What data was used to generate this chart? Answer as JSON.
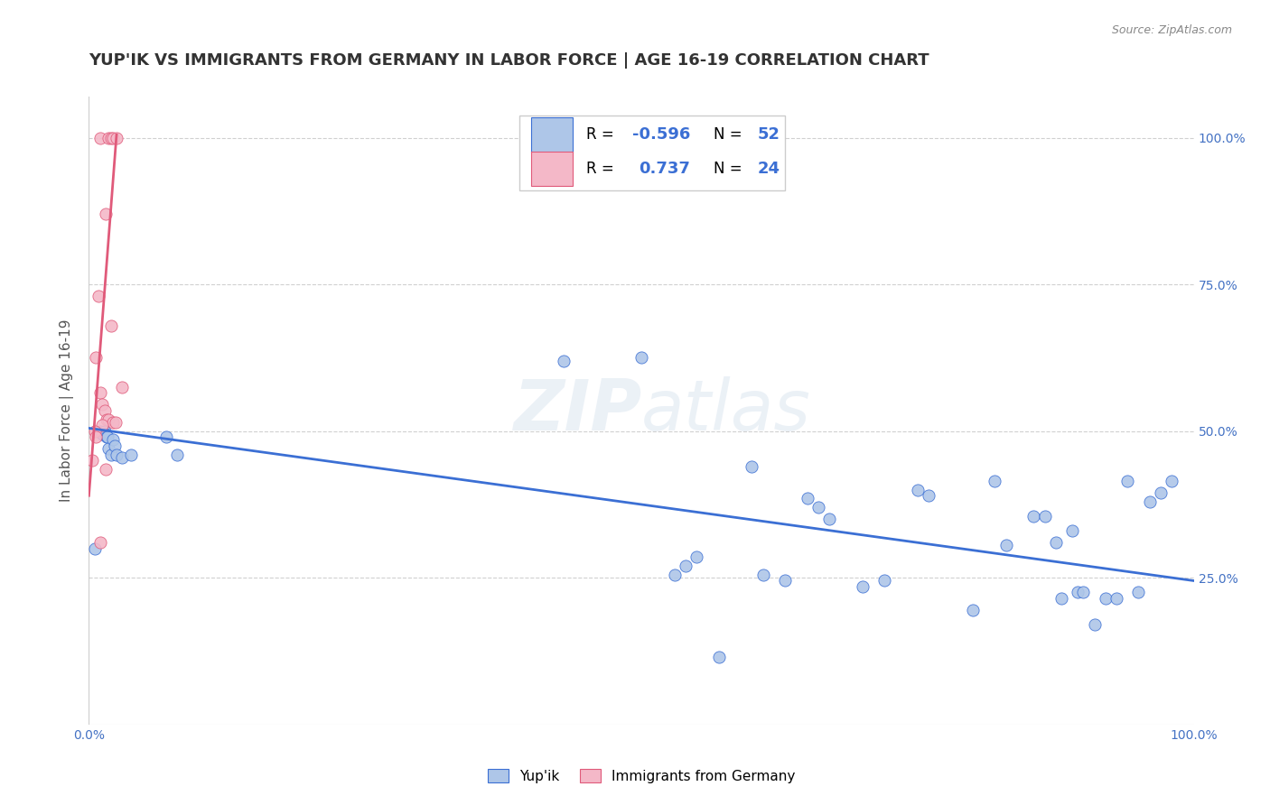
{
  "title": "YUP'IK VS IMMIGRANTS FROM GERMANY IN LABOR FORCE | AGE 16-19 CORRELATION CHART",
  "source": "Source: ZipAtlas.com",
  "ylabel": "In Labor Force | Age 16-19",
  "xlim": [
    0.0,
    1.0
  ],
  "ylim": [
    0.0,
    1.07
  ],
  "xticks": [
    0.0,
    0.25,
    0.5,
    0.75,
    1.0
  ],
  "yticks": [
    0.0,
    0.25,
    0.5,
    0.75,
    1.0
  ],
  "xticklabels_left": "0.0%",
  "xticklabels_right": "100.0%",
  "right_yticklabels": [
    "25.0%",
    "50.0%",
    "75.0%",
    "100.0%"
  ],
  "blue_scatter": [
    [
      0.005,
      0.3
    ],
    [
      0.01,
      0.5
    ],
    [
      0.012,
      0.495
    ],
    [
      0.013,
      0.495
    ],
    [
      0.014,
      0.5
    ],
    [
      0.015,
      0.495
    ],
    [
      0.016,
      0.49
    ],
    [
      0.017,
      0.49
    ],
    [
      0.018,
      0.47
    ],
    [
      0.02,
      0.46
    ],
    [
      0.022,
      0.485
    ],
    [
      0.023,
      0.475
    ],
    [
      0.025,
      0.46
    ],
    [
      0.03,
      0.455
    ],
    [
      0.038,
      0.46
    ],
    [
      0.07,
      0.49
    ],
    [
      0.08,
      0.46
    ],
    [
      0.43,
      0.62
    ],
    [
      0.5,
      0.625
    ],
    [
      0.53,
      0.255
    ],
    [
      0.54,
      0.27
    ],
    [
      0.55,
      0.285
    ],
    [
      0.57,
      0.115
    ],
    [
      0.6,
      0.44
    ],
    [
      0.61,
      0.255
    ],
    [
      0.63,
      0.245
    ],
    [
      0.65,
      0.385
    ],
    [
      0.66,
      0.37
    ],
    [
      0.67,
      0.35
    ],
    [
      0.7,
      0.235
    ],
    [
      0.72,
      0.245
    ],
    [
      0.75,
      0.4
    ],
    [
      0.76,
      0.39
    ],
    [
      0.8,
      0.195
    ],
    [
      0.82,
      0.415
    ],
    [
      0.83,
      0.305
    ],
    [
      0.855,
      0.355
    ],
    [
      0.865,
      0.355
    ],
    [
      0.875,
      0.31
    ],
    [
      0.88,
      0.215
    ],
    [
      0.89,
      0.33
    ],
    [
      0.895,
      0.225
    ],
    [
      0.9,
      0.225
    ],
    [
      0.91,
      0.17
    ],
    [
      0.92,
      0.215
    ],
    [
      0.93,
      0.215
    ],
    [
      0.94,
      0.415
    ],
    [
      0.95,
      0.225
    ],
    [
      0.96,
      0.38
    ],
    [
      0.97,
      0.395
    ],
    [
      0.98,
      0.415
    ]
  ],
  "pink_scatter": [
    [
      0.01,
      1.0
    ],
    [
      0.018,
      1.0
    ],
    [
      0.02,
      1.0
    ],
    [
      0.022,
      1.0
    ],
    [
      0.025,
      1.0
    ],
    [
      0.015,
      0.87
    ],
    [
      0.009,
      0.73
    ],
    [
      0.02,
      0.68
    ],
    [
      0.03,
      0.575
    ],
    [
      0.006,
      0.625
    ],
    [
      0.01,
      0.565
    ],
    [
      0.012,
      0.545
    ],
    [
      0.014,
      0.535
    ],
    [
      0.016,
      0.52
    ],
    [
      0.018,
      0.52
    ],
    [
      0.022,
      0.515
    ],
    [
      0.024,
      0.515
    ],
    [
      0.012,
      0.51
    ],
    [
      0.005,
      0.5
    ],
    [
      0.006,
      0.49
    ],
    [
      0.003,
      0.45
    ],
    [
      0.015,
      0.435
    ],
    [
      0.01,
      0.31
    ]
  ],
  "blue_color": "#aec6e8",
  "pink_color": "#f4b8c8",
  "blue_line_color": "#3b6fd4",
  "pink_line_color": "#e05a7a",
  "blue_line": [
    [
      0.0,
      0.505
    ],
    [
      1.0,
      0.245
    ]
  ],
  "pink_line": [
    [
      0.0,
      0.39
    ],
    [
      0.025,
      1.005
    ]
  ],
  "watermark": "ZIPatlas",
  "background_color": "#ffffff",
  "grid_color": "#d0d0d0",
  "title_fontsize": 13,
  "axis_label_fontsize": 11,
  "tick_fontsize": 10,
  "tick_color": "#4472c4"
}
